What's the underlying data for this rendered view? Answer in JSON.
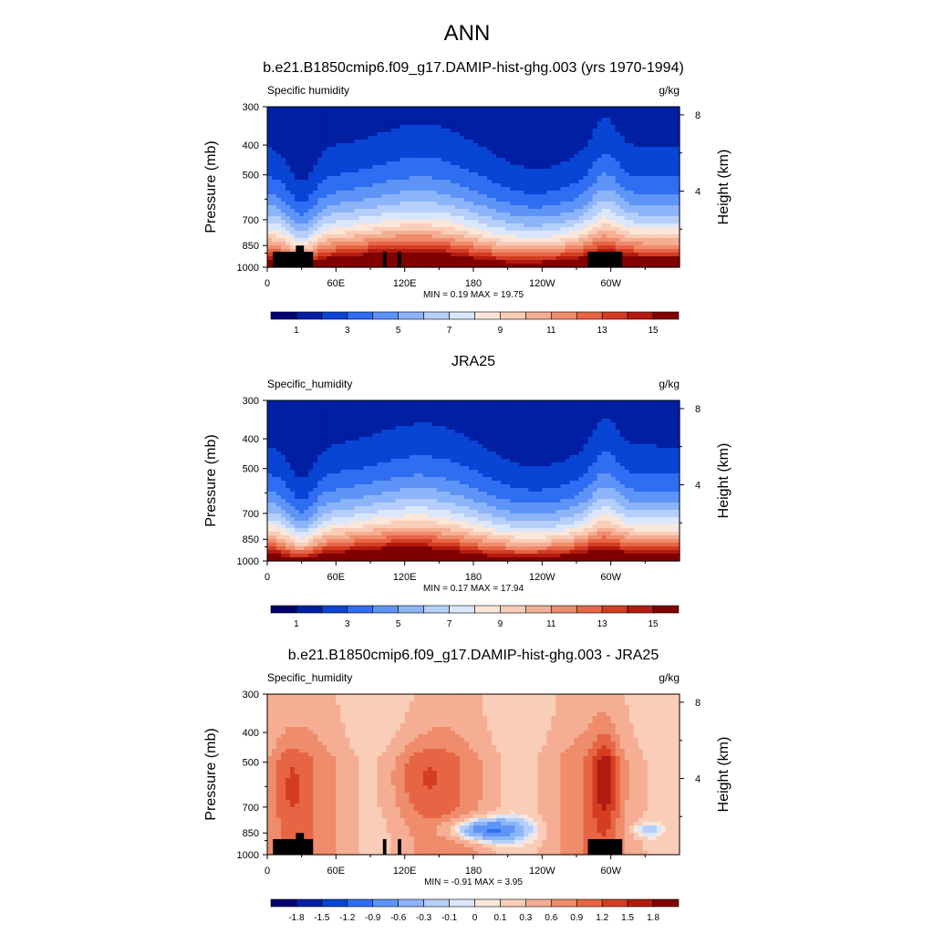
{
  "main_title": "ANN",
  "colors": {
    "scale_full": [
      "#000070",
      "#001fa3",
      "#0845d4",
      "#2f6df2",
      "#5e94f7",
      "#8cb4f8",
      "#b6cffa",
      "#dae6fb",
      "#fbe6da",
      "#f9cdb8",
      "#f5ae93",
      "#ee8c6b",
      "#e76545",
      "#d43d22",
      "#b31b10",
      "#800000"
    ],
    "diff_scale": [
      "#000070",
      "#001fa3",
      "#0845d4",
      "#2f6df2",
      "#5e94f7",
      "#8cb4f8",
      "#b6cffa",
      "#dae6fb",
      "#fbe6da",
      "#f9cdb8",
      "#f5ae93",
      "#ee8c6b",
      "#e76545",
      "#d43d22",
      "#b31b10",
      "#800000"
    ],
    "topography": "#000000"
  },
  "panels": [
    {
      "title": "b.e21.B1850cmip6.f09_g17.DAMIP-hist-ghg.003 (yrs 1970-1994)",
      "left_label": "Specific humidity",
      "right_label": "g/kg",
      "stats": "MIN =   0.19  MAX =  19.75",
      "colorbar_labels": [
        "1",
        "3",
        "5",
        "7",
        "9",
        "11",
        "13",
        "15"
      ]
    },
    {
      "title": "JRA25",
      "left_label": "Specific_humidity",
      "right_label": "g/kg",
      "stats": "MIN =   0.17  MAX =  17.94",
      "colorbar_labels": [
        "1",
        "3",
        "5",
        "7",
        "9",
        "11",
        "13",
        "15"
      ]
    },
    {
      "title": "b.e21.B1850cmip6.f09_g17.DAMIP-hist-ghg.003 - JRA25",
      "left_label": "Specific_humidity",
      "right_label": "g/kg",
      "stats": "MIN =  -0.91  MAX =   3.95",
      "colorbar_labels": [
        "-1.8",
        "-1.5",
        "-1.2",
        "-0.9",
        "-0.6",
        "-0.3",
        "-0.1",
        "0",
        "0.1",
        "0.3",
        "0.6",
        "0.9",
        "1.2",
        "1.5",
        "1.8"
      ]
    }
  ],
  "chart_data": [
    {
      "type": "heatmap",
      "title": "b.e21.B1850cmip6.f09_g17.DAMIP-hist-ghg.003 (yrs 1970-1994)",
      "ylabel": "Pressure (mb)",
      "y2label": "Height (km)",
      "xticks": [
        "0",
        "60E",
        "120E",
        "180",
        "120W",
        "60W"
      ],
      "xtick_values": [
        0,
        60,
        120,
        180,
        240,
        300
      ],
      "xlim": [
        0,
        360
      ],
      "yticks": [
        "300",
        "400",
        "500",
        "700",
        "850",
        "1000"
      ],
      "ytick_values": [
        300,
        400,
        500,
        700,
        850,
        1000
      ],
      "ylim": [
        1000,
        300
      ],
      "y2ticks": [
        "8",
        "4"
      ],
      "y2tick_values": [
        8,
        4
      ],
      "levels": [
        0,
        1,
        2,
        3,
        4,
        5,
        6,
        7,
        8,
        9,
        10,
        11,
        12,
        13,
        14,
        15
      ],
      "min": 0.19,
      "max": 19.75,
      "units": "g/kg"
    },
    {
      "type": "heatmap",
      "title": "JRA25",
      "ylabel": "Pressure (mb)",
      "y2label": "Height (km)",
      "xticks": [
        "0",
        "60E",
        "120E",
        "180",
        "120W",
        "60W"
      ],
      "xtick_values": [
        0,
        60,
        120,
        180,
        240,
        300
      ],
      "xlim": [
        0,
        360
      ],
      "yticks": [
        "300",
        "400",
        "500",
        "700",
        "850",
        "1000"
      ],
      "ytick_values": [
        300,
        400,
        500,
        700,
        850,
        1000
      ],
      "ylim": [
        1000,
        300
      ],
      "y2ticks": [
        "8",
        "4"
      ],
      "y2tick_values": [
        8,
        4
      ],
      "levels": [
        0,
        1,
        2,
        3,
        4,
        5,
        6,
        7,
        8,
        9,
        10,
        11,
        12,
        13,
        14,
        15
      ],
      "min": 0.17,
      "max": 17.94,
      "units": "g/kg"
    },
    {
      "type": "heatmap",
      "title": "b.e21.B1850cmip6.f09_g17.DAMIP-hist-ghg.003 - JRA25",
      "ylabel": "Pressure (mb)",
      "y2label": "Height (km)",
      "xticks": [
        "0",
        "60E",
        "120E",
        "180",
        "120W",
        "60W"
      ],
      "xtick_values": [
        0,
        60,
        120,
        180,
        240,
        300
      ],
      "xlim": [
        0,
        360
      ],
      "yticks": [
        "300",
        "400",
        "500",
        "700",
        "850",
        "1000"
      ],
      "ytick_values": [
        300,
        400,
        500,
        700,
        850,
        1000
      ],
      "ylim": [
        1000,
        300
      ],
      "y2ticks": [
        "8",
        "4"
      ],
      "y2tick_values": [
        8,
        4
      ],
      "levels": [
        -1.8,
        -1.5,
        -1.2,
        -0.9,
        -0.6,
        -0.3,
        -0.1,
        0,
        0.1,
        0.3,
        0.6,
        0.9,
        1.2,
        1.5,
        1.8
      ],
      "min": -0.91,
      "max": 3.95,
      "units": "g/kg"
    }
  ]
}
